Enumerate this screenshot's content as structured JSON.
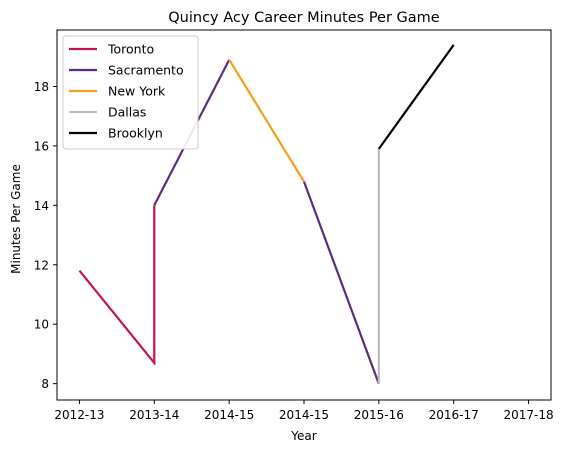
{
  "chart_data": {
    "type": "line",
    "title": "Quincy Acy Career Minutes Per Game",
    "xlabel": "Year",
    "ylabel": "Minutes Per Game",
    "x_tick_labels": [
      "2012-13",
      "2013-14",
      "2014-15",
      "2014-15",
      "2015-16",
      "2016-17",
      "2017-18"
    ],
    "x_ticks": [
      0,
      1,
      2,
      3,
      4,
      5,
      6
    ],
    "xlim": [
      -0.3,
      6.3
    ],
    "y_ticks": [
      8,
      10,
      12,
      14,
      16,
      18
    ],
    "y_tick_labels": [
      "8",
      "10",
      "12",
      "14",
      "16",
      "18"
    ],
    "ylim": [
      7.45,
      19.9
    ],
    "grid": false,
    "legend_position": "top-left",
    "series": [
      {
        "name": "Toronto",
        "color": "#c4144b",
        "points": [
          [
            0,
            11.8
          ],
          [
            1,
            8.7
          ],
          [
            1,
            14.0
          ]
        ]
      },
      {
        "name": "Sacramento",
        "color": "#5a2d81",
        "points": [
          [
            1,
            14.0
          ],
          [
            2,
            18.9
          ]
        ]
      },
      {
        "name": "New York",
        "color": "#f59e1b",
        "points": [
          [
            2,
            18.9
          ],
          [
            3,
            14.8
          ]
        ]
      },
      {
        "name": "Sacramento",
        "color": "#5a2d81",
        "points": [
          [
            3,
            14.8
          ],
          [
            4,
            8.0
          ]
        ]
      },
      {
        "name": "Dallas",
        "color": "#bbbbbb",
        "points": [
          [
            4,
            8.0
          ],
          [
            4,
            15.9
          ]
        ]
      },
      {
        "name": "Brooklyn",
        "color": "#000000",
        "points": [
          [
            4,
            15.9
          ],
          [
            5,
            19.4
          ]
        ]
      }
    ],
    "legend": [
      {
        "name": "Toronto",
        "color": "#c4144b"
      },
      {
        "name": "Sacramento",
        "color": "#5a2d81"
      },
      {
        "name": "New York",
        "color": "#f59e1b"
      },
      {
        "name": "Dallas",
        "color": "#bbbbbb"
      },
      {
        "name": "Brooklyn",
        "color": "#000000"
      }
    ]
  }
}
